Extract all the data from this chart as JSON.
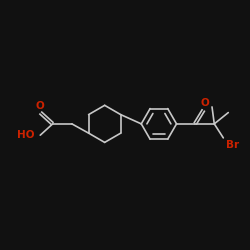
{
  "bg_color": "#111111",
  "bond_color": "#c8c8c8",
  "atom_colors": {
    "O": "#cc2200",
    "Br": "#cc2200",
    "HO": "#cc2200"
  },
  "bond_width": 1.2,
  "font_size": 7.5,
  "xlim": [
    -0.5,
    10.5
  ],
  "ylim": [
    2.5,
    7.5
  ],
  "figsize": [
    2.5,
    2.5
  ],
  "dpi": 100
}
